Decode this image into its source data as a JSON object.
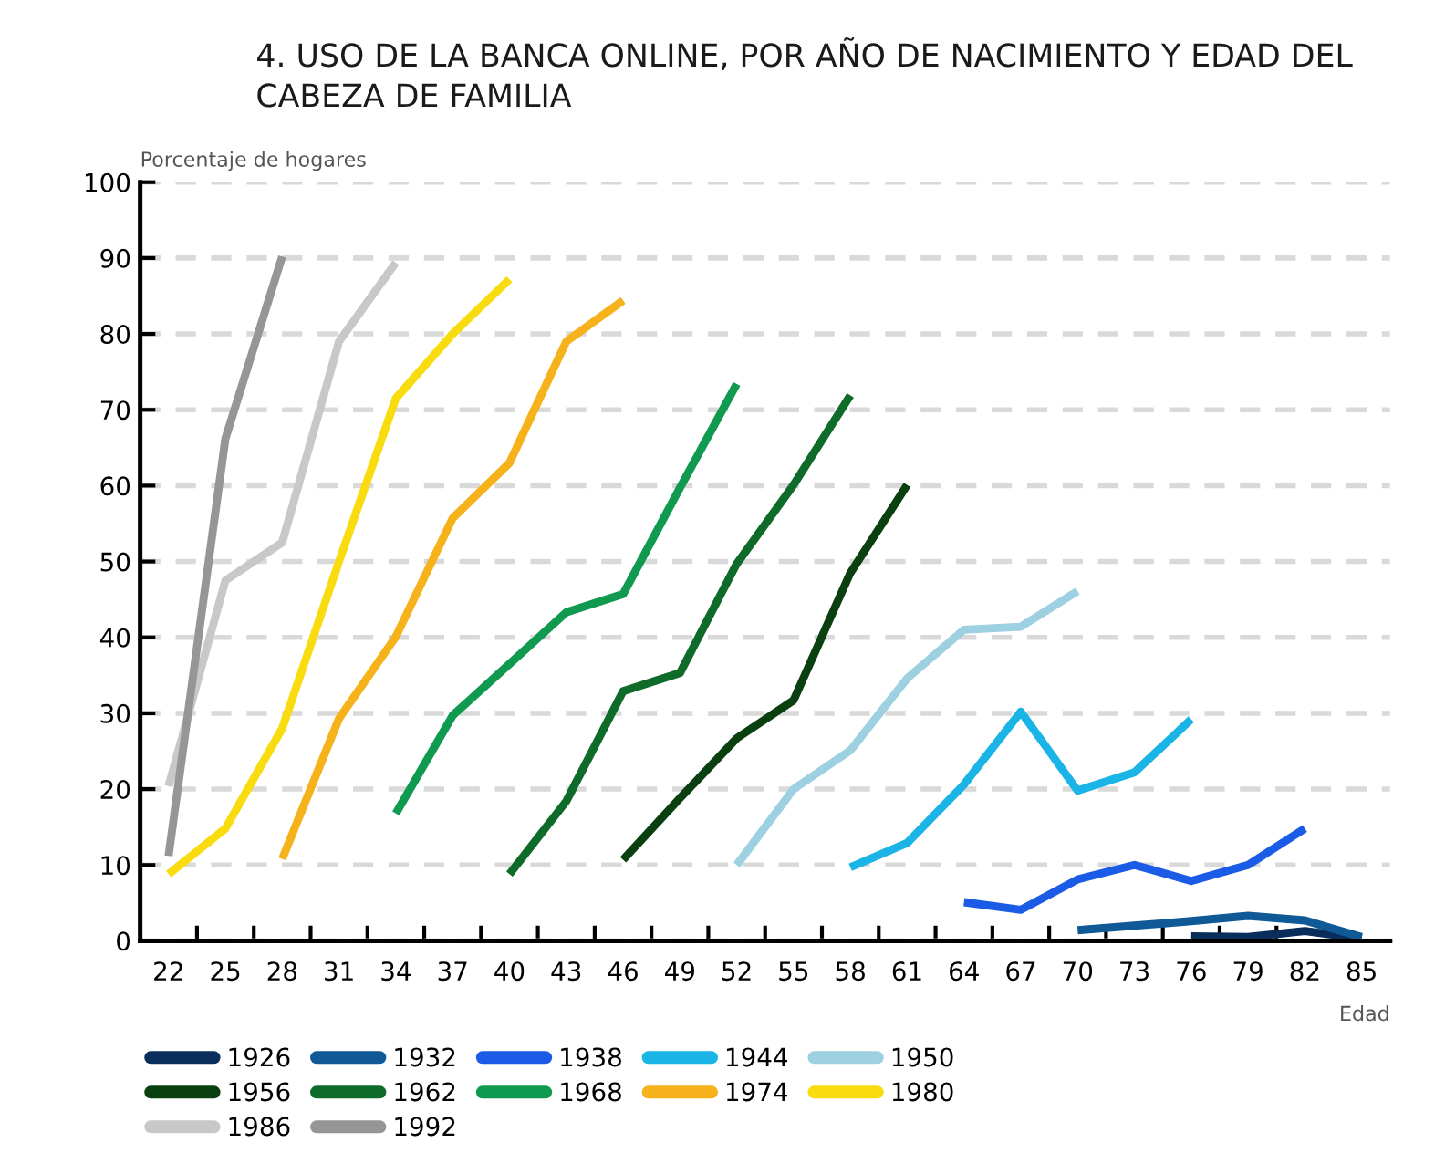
{
  "chart_data": {
    "type": "line",
    "title": "4. USO DE LA BANCA ONLINE, POR AÑO DE NACIMIENTO Y EDAD DEL\nCABEZA DE FAMILIA",
    "ylabel": "Porcentaje de hogares",
    "xlabel": "Edad",
    "categories": [
      "22",
      "25",
      "28",
      "31",
      "34",
      "37",
      "40",
      "43",
      "46",
      "49",
      "52",
      "55",
      "58",
      "61",
      "64",
      "67",
      "70",
      "73",
      "76",
      "79",
      "82",
      "85"
    ],
    "ylim": [
      0,
      100
    ],
    "yticks": [
      0,
      10,
      20,
      30,
      40,
      50,
      60,
      70,
      80,
      90,
      100
    ],
    "grid": "y",
    "legend": "bottom",
    "marker": "none",
    "line_style": "solid",
    "series": [
      {
        "name": "1926",
        "color": "#0a2e5c",
        "values": [
          null,
          null,
          null,
          null,
          null,
          null,
          null,
          null,
          null,
          null,
          null,
          null,
          null,
          null,
          null,
          null,
          null,
          null,
          0.6,
          0.5,
          1.3,
          0.3
        ]
      },
      {
        "name": "1932",
        "color": "#0f5a96",
        "values": [
          null,
          null,
          null,
          null,
          null,
          null,
          null,
          null,
          null,
          null,
          null,
          null,
          null,
          null,
          null,
          null,
          1.4,
          2,
          2.6,
          3.3,
          2.7,
          0.5
        ]
      },
      {
        "name": "1938",
        "color": "#1a5ce6",
        "values": [
          null,
          null,
          null,
          null,
          null,
          null,
          null,
          null,
          null,
          null,
          null,
          null,
          null,
          null,
          5.1,
          4.1,
          8.1,
          10,
          7.9,
          10,
          14.8,
          null
        ]
      },
      {
        "name": "1944",
        "color": "#1ab4e6",
        "values": [
          null,
          null,
          null,
          null,
          null,
          null,
          null,
          null,
          null,
          null,
          null,
          null,
          9.7,
          12.9,
          20.6,
          30.2,
          19.8,
          22.2,
          29.2,
          null,
          null,
          null
        ]
      },
      {
        "name": "1950",
        "color": "#9dd0e0",
        "values": [
          null,
          null,
          null,
          null,
          null,
          null,
          null,
          null,
          null,
          null,
          10,
          20,
          25.1,
          34.6,
          41,
          41.4,
          46.1,
          null,
          null,
          null,
          null,
          null
        ]
      },
      {
        "name": "1956",
        "color": "#0a4010",
        "values": [
          null,
          null,
          null,
          null,
          null,
          null,
          null,
          null,
          10.7,
          18.8,
          26.7,
          31.7,
          48.5,
          60.1,
          null,
          null,
          null,
          null,
          null,
          null,
          null,
          null
        ]
      },
      {
        "name": "1962",
        "color": "#0e6b2a",
        "values": [
          null,
          null,
          null,
          null,
          null,
          null,
          8.8,
          18.4,
          32.9,
          35.3,
          49.7,
          60.1,
          71.9,
          null,
          null,
          null,
          null,
          null,
          null,
          null,
          null,
          null
        ]
      },
      {
        "name": "1968",
        "color": "#0f9a50",
        "values": [
          null,
          null,
          null,
          null,
          16.8,
          29.7,
          36.5,
          43.3,
          45.7,
          59.7,
          73.4,
          null,
          null,
          null,
          null,
          null,
          null,
          null,
          null,
          null,
          null,
          null
        ]
      },
      {
        "name": "1974",
        "color": "#f5b21a",
        "values": [
          null,
          null,
          10.8,
          29.3,
          40.1,
          55.7,
          63,
          79,
          84.4,
          null,
          null,
          null,
          null,
          null,
          null,
          null,
          null,
          null,
          null,
          null,
          null,
          null
        ]
      },
      {
        "name": "1980",
        "color": "#f8dc10",
        "values": [
          8.8,
          14.8,
          28,
          50,
          71.5,
          80,
          87.2,
          null,
          null,
          null,
          null,
          null,
          null,
          null,
          null,
          null,
          null,
          null,
          null,
          null,
          null,
          null
        ]
      },
      {
        "name": "1986",
        "color": "#c8c8c8",
        "values": [
          20.4,
          47.5,
          52.5,
          79,
          89.4,
          null,
          null,
          null,
          null,
          null,
          null,
          null,
          null,
          null,
          null,
          null,
          null,
          null,
          null,
          null,
          null,
          null
        ]
      },
      {
        "name": "1992",
        "color": "#969696",
        "values": [
          11.2,
          66.2,
          90.2,
          null,
          null,
          null,
          null,
          null,
          null,
          null,
          null,
          null,
          null,
          null,
          null,
          null,
          null,
          null,
          null,
          null,
          null,
          null
        ]
      }
    ]
  }
}
